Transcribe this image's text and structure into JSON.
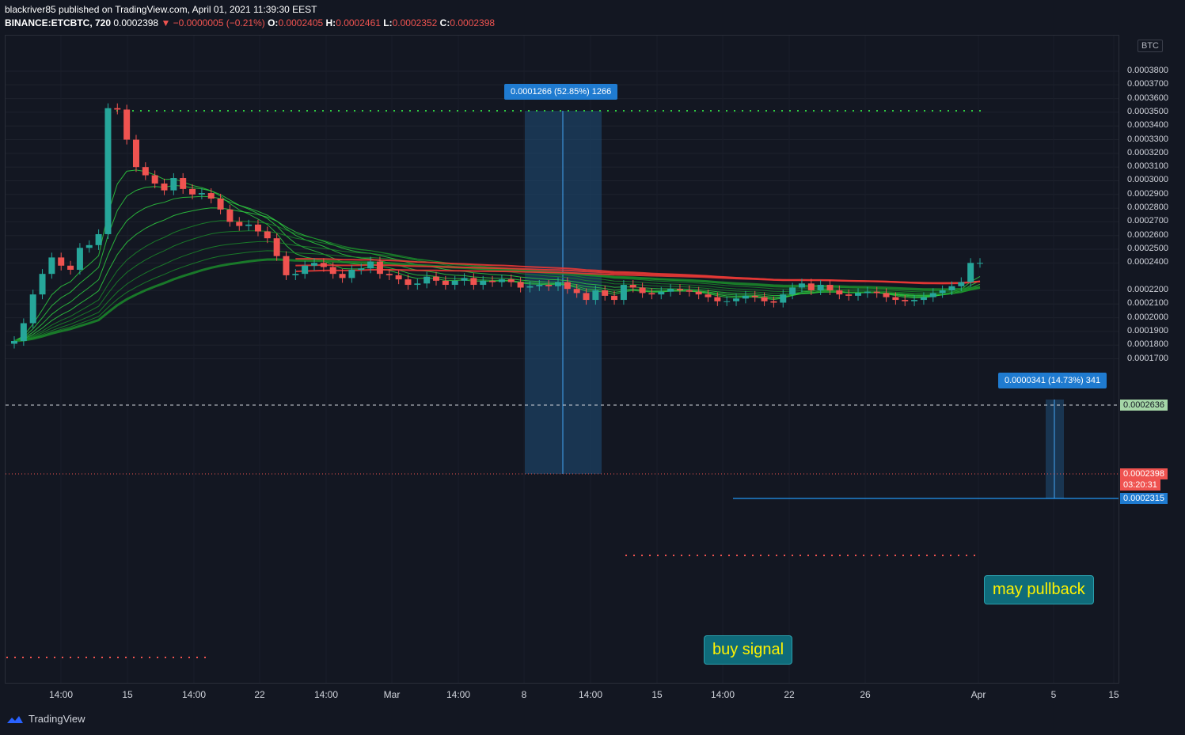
{
  "header": {
    "line1": "blackriver85 published on TradingView.com, April 01, 2021 11:39:30 EEST",
    "symbol": "BINANCE:ETCBTC, 720",
    "price": "0.0002398",
    "change": "▼ −0.0000005 (−0.21%)",
    "o_label": "O:",
    "o_value": "0.0002405",
    "h_label": "H:",
    "h_value": "0.0002461",
    "l_label": "L:",
    "l_value": "0.0002352",
    "c_label": "C:",
    "c_value": "0.0002398"
  },
  "unit_label": "BTC",
  "price_tags": {
    "white_line": "0.0002636",
    "current": "0.0002398",
    "countdown": "03:20:31",
    "blue_line": "0.0002315"
  },
  "measure_1": "0.0001266 (52.85%) 1266",
  "measure_2": "0.0000341 (14.73%) 341",
  "callouts": {
    "buy": "buy signal",
    "pullback": "may pullback"
  },
  "footer": {
    "brand": "TradingView"
  },
  "colors": {
    "up": "#26a69a",
    "down": "#ef5350",
    "ribbon_green": "#2ecc40",
    "ribbon_red": "#e53935",
    "background": "#131722"
  },
  "chart_data": {
    "type": "candlestick",
    "y_ticks": [
      "0.0003800",
      "0.0003700",
      "0.0003600",
      "0.0003500",
      "0.0003400",
      "0.0003300",
      "0.0003200",
      "0.0003100",
      "0.0003000",
      "0.0002900",
      "0.0002800",
      "0.0002700",
      "0.0002600",
      "0.0002500",
      "0.0002400",
      "0.0002200",
      "0.0002100",
      "0.0002000",
      "0.0001900",
      "0.0001800",
      "0.0001700"
    ],
    "ylim": [
      0.000168,
      0.000391
    ],
    "x_ticks": [
      "14:00",
      "15",
      "14:00",
      "22",
      "14:00",
      "Mar",
      "14:00",
      "8",
      "14:00",
      "15",
      "14:00",
      "22",
      "26",
      "Apr",
      "5",
      "15"
    ],
    "candles_close": [
      0.000183,
      0.000196,
      0.000217,
      0.000232,
      0.000244,
      0.000238,
      0.000235,
      0.000251,
      0.000253,
      0.000261,
      0.000353,
      0.000352,
      0.00033,
      0.00031,
      0.000304,
      0.000298,
      0.000293,
      0.000302,
      0.000294,
      0.00029,
      0.000291,
      0.000287,
      0.000279,
      0.00027,
      0.000267,
      0.000268,
      0.000263,
      0.000258,
      0.000245,
      0.000231,
      0.000232,
      0.000238,
      0.00024,
      0.000237,
      0.000232,
      0.000229,
      0.000235,
      0.000236,
      0.000241,
      0.000232,
      0.000231,
      0.000228,
      0.000224,
      0.000225,
      0.00023,
      0.000227,
      0.000224,
      0.000227,
      0.000229,
      0.000224,
      0.000227,
      0.000226,
      0.000228,
      0.000226,
      0.000222,
      0.000223,
      0.000224,
      0.000223,
      0.000226,
      0.000221,
      0.000218,
      0.000213,
      0.00022,
      0.000216,
      0.000213,
      0.000224,
      0.000222,
      0.000218,
      0.000217,
      0.000219,
      0.000221,
      0.00022,
      0.000219,
      0.000217,
      0.000215,
      0.000212,
      0.000212,
      0.000214,
      0.000216,
      0.000215,
      0.000212,
      0.000211,
      0.000217,
      0.000222,
      0.000225,
      0.00022,
      0.000224,
      0.00022,
      0.000217,
      0.000216,
      0.000218,
      0.000219,
      0.000218,
      0.000215,
      0.000213,
      0.000212,
      0.000213,
      0.000215,
      0.000218,
      0.00022,
      0.000223,
      0.000226,
      0.00024,
      0.00024
    ],
    "annotations": [
      "buy signal",
      "may pullback"
    ]
  }
}
